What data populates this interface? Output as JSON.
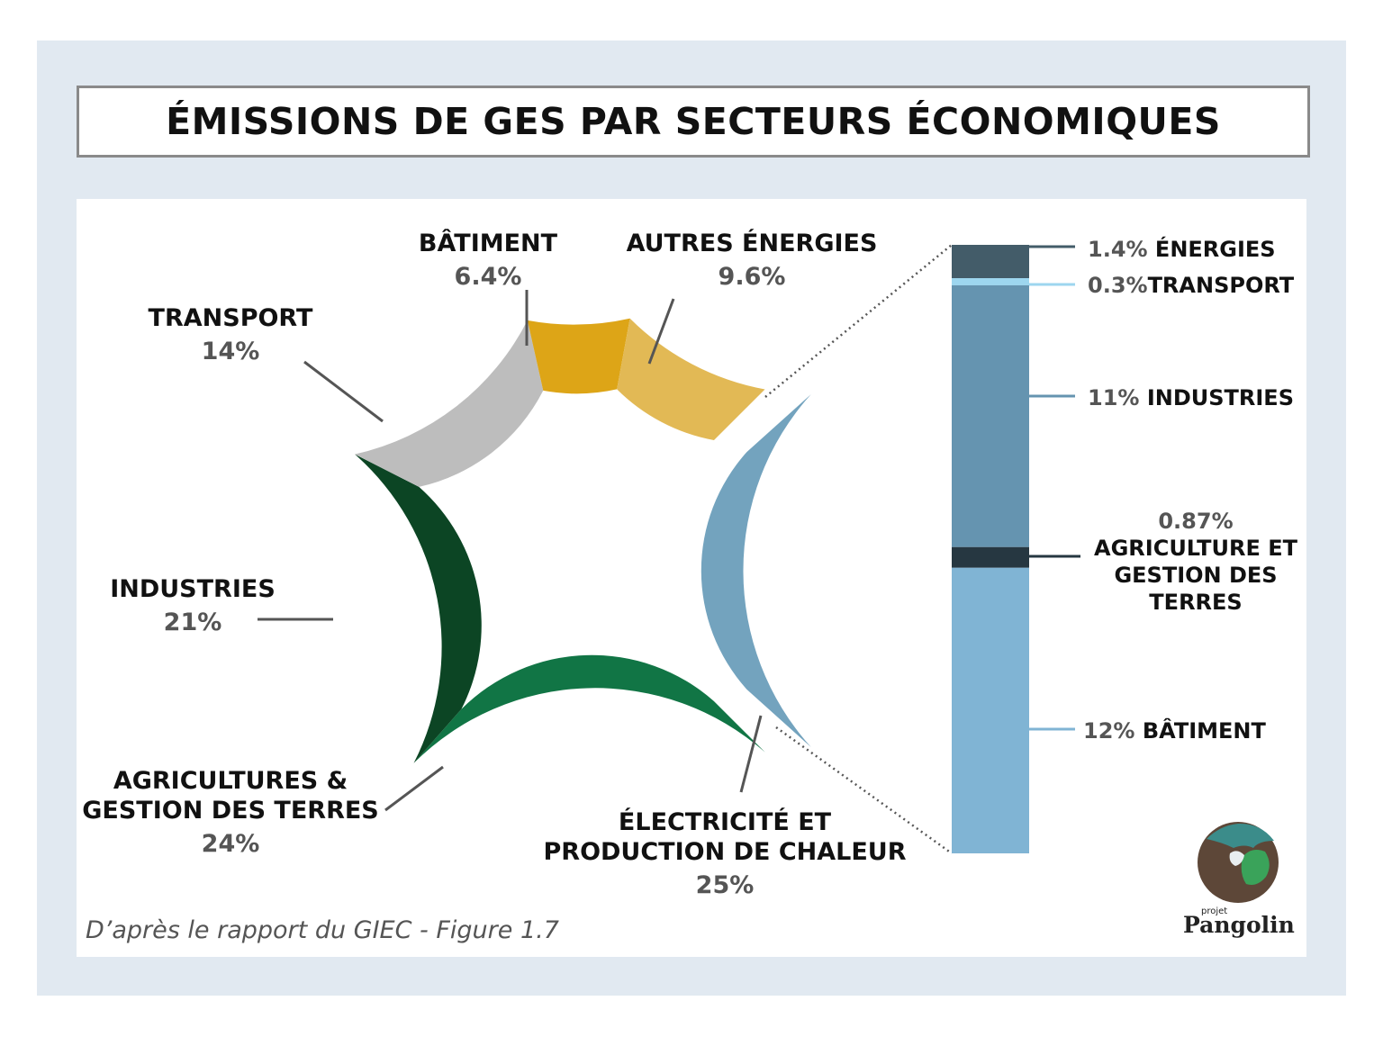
{
  "title": "ÉMISSIONS DE GES PAR SECTEURS ÉCONOMIQUES",
  "source": "D’après le rapport du GIEC - Figure 1.7",
  "logo": {
    "small": "projet",
    "name": "Pangolin"
  },
  "colors": {
    "frame": "#e1e9f1",
    "electricity": "#73a3be",
    "agriculture": "#117545",
    "industries": "#0c4524",
    "transport": "#bdbdbd",
    "batiment": "#dda517",
    "autres": "#e2b955",
    "bar_energies": "#435c69",
    "bar_transport": "#9dd6ef",
    "bar_industries": "#6594b0",
    "bar_agriculture": "#263741",
    "bar_batiment": "#80b4d4"
  },
  "chart_data": [
    {
      "type": "pie",
      "variant": "donut",
      "slices": [
        {
          "name": "ÉLECTRICITÉ ET PRODUCTION DE CHALEUR",
          "label_lines": [
            "ÉLECTRICITÉ ET",
            "PRODUCTION DE CHALEUR"
          ],
          "value": 25,
          "value_label": "25%",
          "color_key": "electricity",
          "exploded": true
        },
        {
          "name": "AGRICULTURES & GESTION DES TERRES",
          "label_lines": [
            "AGRICULTURES &",
            "GESTION DES TERRES"
          ],
          "value": 24,
          "value_label": "24%",
          "color_key": "agriculture"
        },
        {
          "name": "INDUSTRIES",
          "label_lines": [
            "INDUSTRIES"
          ],
          "value": 21,
          "value_label": "21%",
          "color_key": "industries"
        },
        {
          "name": "TRANSPORT",
          "label_lines": [
            "TRANSPORT"
          ],
          "value": 14,
          "value_label": "14%",
          "color_key": "transport"
        },
        {
          "name": "BÂTIMENT",
          "label_lines": [
            "BÂTIMENT"
          ],
          "value": 6.4,
          "value_label": "6.4%",
          "color_key": "batiment"
        },
        {
          "name": "AUTRES ÉNERGIES",
          "label_lines": [
            "AUTRES ÉNERGIES"
          ],
          "value": 9.6,
          "value_label": "9.6%",
          "color_key": "autres"
        }
      ]
    },
    {
      "type": "bar",
      "variant": "stacked-breakdown",
      "breakdown_of": "ÉLECTRICITÉ ET PRODUCTION DE CHALEUR",
      "segments": [
        {
          "name": "ÉNERGIES",
          "value": 1.4,
          "value_label": "1.4%",
          "color_key": "bar_energies"
        },
        {
          "name": "TRANSPORT",
          "value": 0.3,
          "value_label": "0.3%",
          "color_key": "bar_transport"
        },
        {
          "name": "INDUSTRIES",
          "value": 11,
          "value_label": "11%",
          "color_key": "bar_industries"
        },
        {
          "name": "AGRICULTURE ET GESTION DES TERRES",
          "label_lines": [
            "AGRICULTURE ET",
            "GESTION DES",
            "TERRES"
          ],
          "value": 0.87,
          "value_label": "0.87%",
          "color_key": "bar_agriculture"
        },
        {
          "name": "BÂTIMENT",
          "value": 12,
          "value_label": "12%",
          "color_key": "bar_batiment"
        }
      ]
    }
  ]
}
